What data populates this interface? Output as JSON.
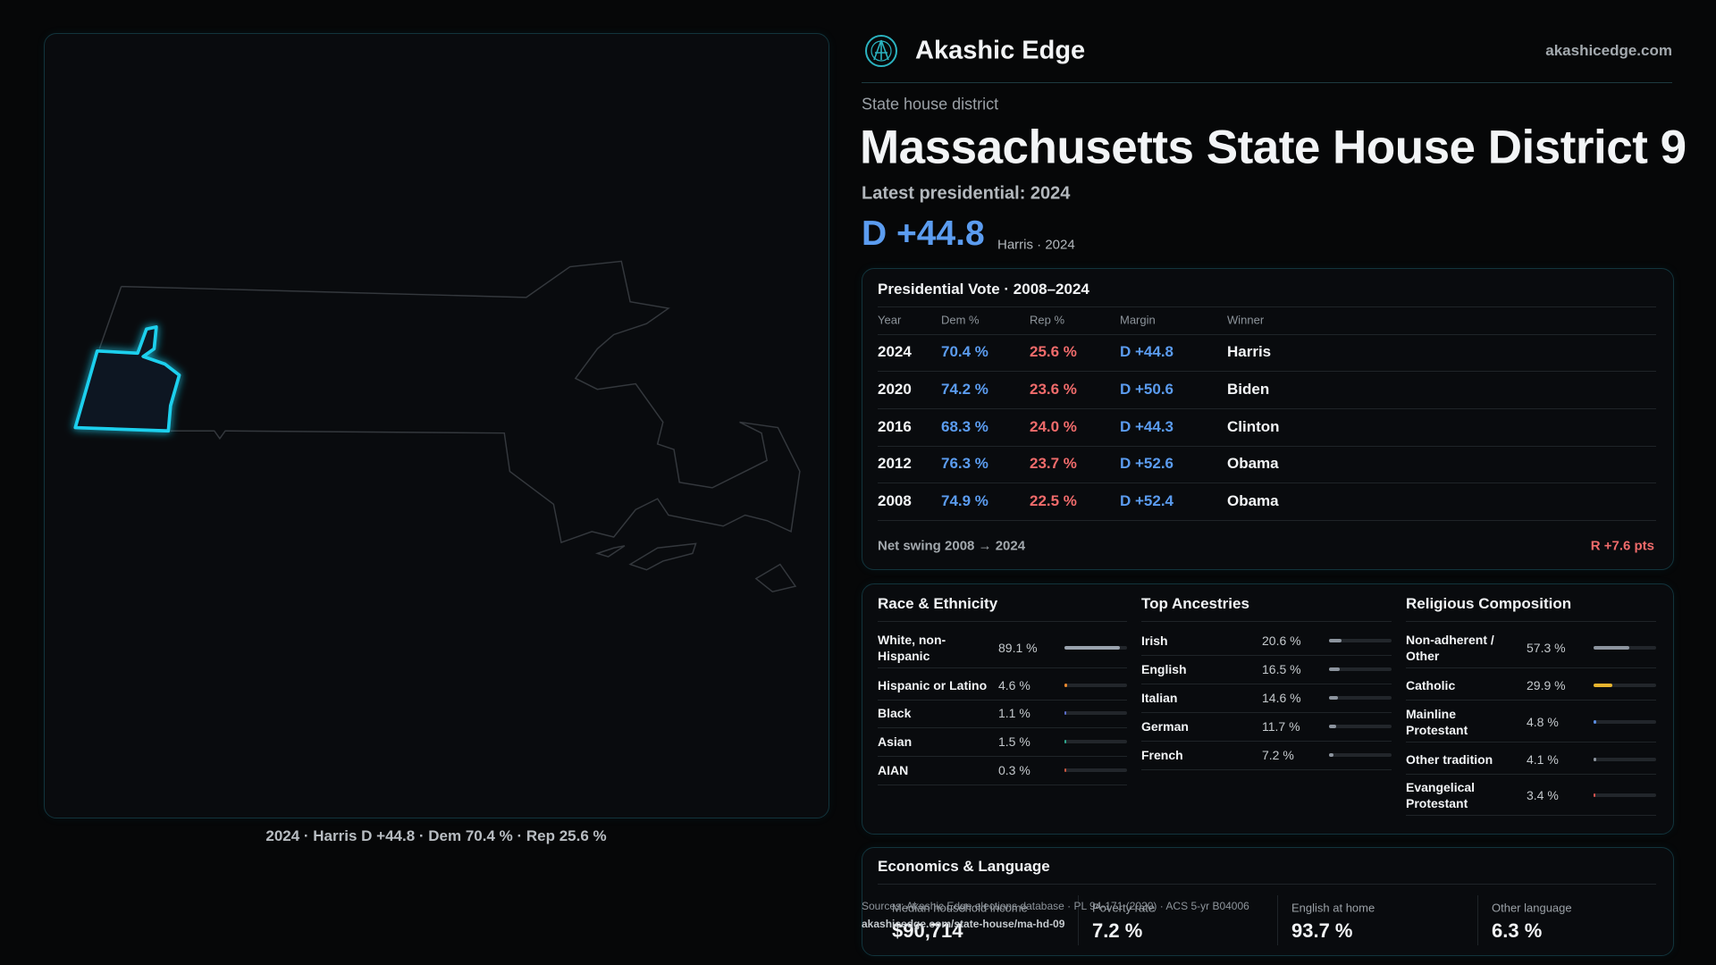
{
  "header": {
    "brand": "Akashic Edge",
    "site": "akashicedge.com"
  },
  "district": {
    "kind": "State house district",
    "title": "Massachusetts State House District 9",
    "latest": "Latest presidential: 2024",
    "margin": "D +44.8",
    "margin_note": "Harris · 2024"
  },
  "map": {
    "caption": "2024 · Harris D +44.8 · Dem 70.4 % · Rep 25.6 %"
  },
  "presidential": {
    "title": "Presidential Vote · 2008–2024",
    "columns": [
      "Year",
      "Dem %",
      "Rep %",
      "Margin",
      "Winner"
    ],
    "rows": [
      [
        "2024",
        "70.4 %",
        "25.6 %",
        "D +44.8",
        "Harris"
      ],
      [
        "2020",
        "74.2 %",
        "23.6 %",
        "D +50.6",
        "Biden"
      ],
      [
        "2016",
        "68.3 %",
        "24.0 %",
        "D +44.3",
        "Clinton"
      ],
      [
        "2012",
        "76.3 %",
        "23.7 %",
        "D +52.6",
        "Obama"
      ],
      [
        "2008",
        "74.9 %",
        "22.5 %",
        "D +52.4",
        "Obama"
      ]
    ],
    "swing_label": "Net swing 2008 → 2024",
    "swing_value": "R +7.6 pts"
  },
  "race": {
    "title": "Race & Ethnicity",
    "rows": [
      {
        "label": "White, non-Hispanic",
        "value": 89.1,
        "value_label": "89.1 %",
        "color": "#9aa3ae"
      },
      {
        "label": "Hispanic or Latino",
        "value": 4.6,
        "value_label": "4.6 %",
        "color": "#e8892f"
      },
      {
        "label": "Black",
        "value": 1.1,
        "value_label": "1.1 %",
        "color": "#5a6cc9"
      },
      {
        "label": "Asian",
        "value": 1.5,
        "value_label": "1.5 %",
        "color": "#2fa88f"
      },
      {
        "label": "AIAN",
        "value": 0.3,
        "value_label": "0.3 %",
        "color": "#c7563f"
      }
    ]
  },
  "ancestry": {
    "title": "Top Ancestries",
    "rows": [
      {
        "label": "Irish",
        "value": 20.6,
        "value_label": "20.6 %",
        "color": "#8c949e"
      },
      {
        "label": "English",
        "value": 16.5,
        "value_label": "16.5 %",
        "color": "#8c949e"
      },
      {
        "label": "Italian",
        "value": 14.6,
        "value_label": "14.6 %",
        "color": "#8c949e"
      },
      {
        "label": "German",
        "value": 11.7,
        "value_label": "11.7 %",
        "color": "#8c949e"
      },
      {
        "label": "French",
        "value": 7.2,
        "value_label": "7.2 %",
        "color": "#8c949e"
      }
    ]
  },
  "religion": {
    "title": "Religious Composition",
    "rows": [
      {
        "label": "Non-adherent / Other",
        "value": 57.3,
        "value_label": "57.3 %",
        "color": "#8c949e"
      },
      {
        "label": "Catholic",
        "value": 29.9,
        "value_label": "29.9 %",
        "color": "#e6b42e"
      },
      {
        "label": "Mainline Protestant",
        "value": 4.8,
        "value_label": "4.8 %",
        "color": "#5b8de0"
      },
      {
        "label": "Other tradition",
        "value": 4.1,
        "value_label": "4.1 %",
        "color": "#8c949e"
      },
      {
        "label": "Evangelical Protestant",
        "value": 3.4,
        "value_label": "3.4 %",
        "color": "#d9534f"
      }
    ]
  },
  "economics": {
    "title": "Economics & Language",
    "items": [
      {
        "label": "Median household income",
        "value": "$90,714"
      },
      {
        "label": "Poverty rate",
        "value": "7.2 %"
      },
      {
        "label": "English at home",
        "value": "93.7 %"
      },
      {
        "label": "Other language",
        "value": "6.3 %"
      }
    ]
  },
  "footer": {
    "sources": "Sources: Akashic Edge elections database · PL 94-171 (2020) · ACS 5-yr B04006",
    "url": "akashicedge.com/state-house/ma-hd-09"
  }
}
